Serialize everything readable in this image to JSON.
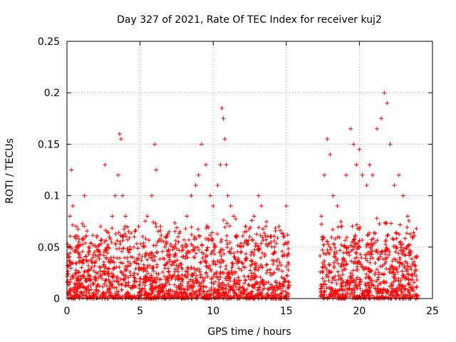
{
  "chart_data": {
    "type": "scatter",
    "title": "Day 327 of 2021, Rate Of TEC Index for receiver kuj2",
    "xlabel": "GPS time / hours",
    "ylabel": "ROTI / TECUs",
    "xlim": [
      0,
      25
    ],
    "ylim": [
      0,
      0.25
    ],
    "xticks": [
      "0",
      "5",
      "10",
      "15",
      "20",
      "25"
    ],
    "yticks": [
      "0",
      "0.05",
      "0.1",
      "0.15",
      "0.2",
      "0.25"
    ],
    "grid": true,
    "marker": "+",
    "series": [
      {
        "name": "ROTI",
        "color": "#ff0000",
        "x": [
          0.1,
          0.2,
          0.3,
          0.4,
          0.5,
          0.6,
          0.8,
          1.0,
          1.2,
          1.5,
          1.8,
          2.0,
          2.3,
          2.6,
          2.9,
          3.1,
          3.3,
          3.5,
          3.6,
          3.7,
          3.8,
          4.0,
          4.3,
          4.6,
          4.9,
          5.2,
          5.5,
          5.8,
          6.0,
          6.1,
          6.4,
          6.7,
          7.0,
          7.3,
          7.6,
          7.9,
          8.2,
          8.5,
          8.8,
          9.0,
          9.2,
          9.5,
          9.8,
          10.0,
          10.3,
          10.5,
          10.6,
          10.7,
          10.8,
          10.9,
          11.0,
          11.2,
          11.4,
          11.6,
          11.9,
          12.2,
          12.5,
          12.8,
          13.1,
          13.3,
          13.6,
          13.9,
          14.2,
          14.5,
          14.8,
          15.0,
          17.4,
          17.6,
          17.8,
          18.0,
          18.2,
          18.5,
          18.8,
          19.1,
          19.4,
          19.6,
          19.8,
          20.0,
          20.2,
          20.5,
          20.7,
          20.9,
          21.2,
          21.5,
          21.7,
          21.9,
          22.1,
          22.4,
          22.7,
          23.0,
          23.3,
          23.6,
          23.9
        ],
        "y": [
          0.04,
          0.08,
          0.125,
          0.09,
          0.06,
          0.05,
          0.04,
          0.03,
          0.1,
          0.05,
          0.04,
          0.05,
          0.07,
          0.13,
          0.06,
          0.08,
          0.1,
          0.12,
          0.16,
          0.155,
          0.1,
          0.08,
          0.05,
          0.06,
          0.07,
          0.05,
          0.08,
          0.1,
          0.15,
          0.125,
          0.07,
          0.05,
          0.04,
          0.05,
          0.06,
          0.05,
          0.08,
          0.1,
          0.11,
          0.12,
          0.15,
          0.13,
          0.1,
          0.09,
          0.11,
          0.13,
          0.185,
          0.175,
          0.155,
          0.13,
          0.1,
          0.09,
          0.08,
          0.06,
          0.05,
          0.07,
          0.06,
          0.08,
          0.1,
          0.09,
          0.07,
          0.06,
          0.05,
          0.07,
          0.06,
          0.09,
          0.08,
          0.12,
          0.155,
          0.14,
          0.1,
          0.09,
          0.07,
          0.12,
          0.165,
          0.15,
          0.13,
          0.145,
          0.12,
          0.11,
          0.13,
          0.12,
          0.165,
          0.175,
          0.2,
          0.19,
          0.15,
          0.11,
          0.12,
          0.1,
          0.08,
          0.06,
          0.04
        ]
      }
    ],
    "data_gap_hours": [
      15.2,
      17.3
    ],
    "baseline_range": [
      0.0,
      0.05
    ]
  }
}
